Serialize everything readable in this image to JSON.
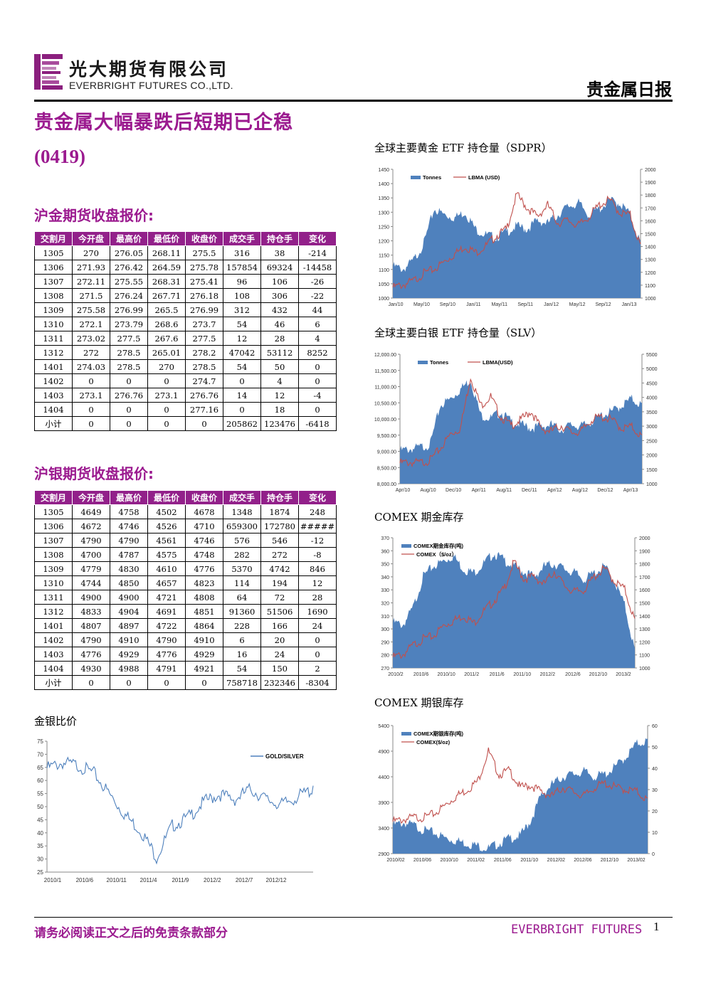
{
  "header": {
    "company_cn": "光大期货有限公司",
    "company_en": "EVERBRIGHT FUTURES CO.,LTD.",
    "report_type": "贵金属日报"
  },
  "headline": "贵金属大幅暴跌后短期已企稳",
  "date_code": "(0419)",
  "colors": {
    "brand": "#9b1a8f",
    "table_header": "#92208a",
    "bar_fill": "#4f81bd",
    "line_red": "#c0504d"
  },
  "gold_futures": {
    "title": "沪金期货收盘报价:",
    "columns": [
      "交割月",
      "今开盘",
      "最高价",
      "最低价",
      "收盘价",
      "成交手",
      "持仓手",
      "变化"
    ],
    "rows": [
      [
        "1305",
        "270",
        "276.05",
        "268.11",
        "275.5",
        "316",
        "38",
        "-214"
      ],
      [
        "1306",
        "271.93",
        "276.42",
        "264.59",
        "275.78",
        "157854",
        "69324",
        "-14458"
      ],
      [
        "1307",
        "272.11",
        "275.55",
        "268.31",
        "275.41",
        "96",
        "106",
        "-26"
      ],
      [
        "1308",
        "271.5",
        "276.24",
        "267.71",
        "276.18",
        "108",
        "306",
        "-22"
      ],
      [
        "1309",
        "275.58",
        "276.99",
        "265.5",
        "276.99",
        "312",
        "432",
        "44"
      ],
      [
        "1310",
        "272.1",
        "273.79",
        "268.6",
        "273.7",
        "54",
        "46",
        "6"
      ],
      [
        "1311",
        "273.02",
        "277.5",
        "267.6",
        "277.5",
        "12",
        "28",
        "4"
      ],
      [
        "1312",
        "272",
        "278.5",
        "265.01",
        "278.2",
        "47042",
        "53112",
        "8252"
      ],
      [
        "1401",
        "274.03",
        "278.5",
        "270",
        "278.5",
        "54",
        "50",
        "0"
      ],
      [
        "1402",
        "0",
        "0",
        "0",
        "274.7",
        "0",
        "4",
        "0"
      ],
      [
        "1403",
        "273.1",
        "276.76",
        "273.1",
        "276.76",
        "14",
        "12",
        "-4"
      ],
      [
        "1404",
        "0",
        "0",
        "0",
        "277.16",
        "0",
        "18",
        "0"
      ],
      [
        "小计",
        "0",
        "0",
        "0",
        "0",
        "205862",
        "123476",
        "-6418"
      ]
    ]
  },
  "silver_futures": {
    "title": "沪银期货收盘报价:",
    "columns": [
      "交割月",
      "今开盘",
      "最高价",
      "最低价",
      "收盘价",
      "成交手",
      "持仓手",
      "变化"
    ],
    "rows": [
      [
        "1305",
        "4649",
        "4758",
        "4502",
        "4678",
        "1348",
        "1874",
        "248"
      ],
      [
        "1306",
        "4672",
        "4746",
        "4526",
        "4710",
        "659300",
        "172780",
        "#####"
      ],
      [
        "1307",
        "4790",
        "4790",
        "4561",
        "4746",
        "576",
        "546",
        "-12"
      ],
      [
        "1308",
        "4700",
        "4787",
        "4575",
        "4748",
        "282",
        "272",
        "-8"
      ],
      [
        "1309",
        "4779",
        "4830",
        "4610",
        "4776",
        "5370",
        "4742",
        "846"
      ],
      [
        "1310",
        "4744",
        "4850",
        "4657",
        "4823",
        "114",
        "194",
        "12"
      ],
      [
        "1311",
        "4900",
        "4900",
        "4721",
        "4808",
        "64",
        "72",
        "28"
      ],
      [
        "1312",
        "4833",
        "4904",
        "4691",
        "4851",
        "91360",
        "51506",
        "1690"
      ],
      [
        "1401",
        "4807",
        "4897",
        "4722",
        "4864",
        "228",
        "166",
        "24"
      ],
      [
        "1402",
        "4790",
        "4910",
        "4790",
        "4910",
        "6",
        "20",
        "0"
      ],
      [
        "1403",
        "4776",
        "4929",
        "4776",
        "4929",
        "16",
        "24",
        "0"
      ],
      [
        "1404",
        "4930",
        "4988",
        "4791",
        "4921",
        "54",
        "150",
        "2"
      ],
      [
        "小计",
        "0",
        "0",
        "0",
        "0",
        "758718",
        "232346",
        "-8304"
      ]
    ]
  },
  "chart_data": [
    {
      "id": "gold_silver_ratio",
      "type": "line",
      "title": "金银比价",
      "series": [
        {
          "name": "GOLD/SILVER",
          "x": [
            "2010/1",
            "2010/3",
            "2010/6",
            "2010/8",
            "2010/11",
            "2011/1",
            "2011/3",
            "2011/4",
            "2011/6",
            "2011/9",
            "2011/11",
            "2012/2",
            "2012/4",
            "2012/7",
            "2012/9",
            "2012/12",
            "2013/2",
            "2013/4"
          ],
          "values": [
            66,
            68,
            67,
            64,
            56,
            48,
            42,
            32,
            44,
            47,
            53,
            56,
            54,
            58,
            54,
            52,
            55,
            58
          ]
        }
      ],
      "x_ticks": [
        "2010/1",
        "2010/6",
        "2010/11",
        "2011/4",
        "2011/9",
        "2012/2",
        "2012/7",
        "2012/12"
      ],
      "ylim": [
        25,
        75
      ],
      "y_ticks": [
        25,
        30,
        35,
        40,
        45,
        50,
        55,
        60,
        65,
        70,
        75
      ],
      "legend": "top-right"
    },
    {
      "id": "gold_etf",
      "type": "area",
      "title": "全球主要黄金 ETF 持仓量（SDPR）",
      "x_ticks": [
        "Jan/10",
        "May/10",
        "Sep/10",
        "Jan/11",
        "May/11",
        "Sep/11",
        "Jan/12",
        "May/12",
        "Sep/12",
        "Jan/13"
      ],
      "series": [
        {
          "name": "Tonnes",
          "axis": "left",
          "kind": "area",
          "values": [
            1120,
            1110,
            1140,
            1200,
            1320,
            1300,
            1290,
            1310,
            1250,
            1230,
            1220,
            1240,
            1260,
            1250,
            1280,
            1270,
            1300,
            1330,
            1340,
            1300,
            1320,
            1350,
            1340,
            1300,
            1200
          ]
        },
        {
          "name": "LBMA (USD)",
          "axis": "right",
          "kind": "line",
          "values": [
            1100,
            1120,
            1150,
            1210,
            1240,
            1300,
            1360,
            1420,
            1370,
            1420,
            1500,
            1550,
            1820,
            1720,
            1650,
            1740,
            1600,
            1620,
            1580,
            1650,
            1740,
            1780,
            1680,
            1660,
            1420
          ]
        }
      ],
      "ylim_left": [
        1000,
        1450
      ],
      "y_ticks_left": [
        1000,
        1050,
        1100,
        1150,
        1200,
        1250,
        1300,
        1350,
        1400,
        1450
      ],
      "ylim_right": [
        1000,
        2000
      ],
      "y_ticks_right": [
        1000,
        1100,
        1200,
        1300,
        1400,
        1500,
        1600,
        1700,
        1800,
        1900,
        2000
      ],
      "legend": "top-left"
    },
    {
      "id": "silver_etf",
      "type": "area",
      "title": "全球主要白银 ETF 持仓量（SLV）",
      "x_ticks": [
        "Apr/10",
        "Aug/10",
        "Dec/10",
        "Apr/11",
        "Aug/11",
        "Dec/11",
        "Apr/12",
        "Aug/12",
        "Dec/12",
        "Apr/13"
      ],
      "series": [
        {
          "name": "Tonnes",
          "axis": "left",
          "kind": "area",
          "values": [
            9100,
            9150,
            9200,
            9300,
            10500,
            10700,
            11000,
            11300,
            10200,
            10100,
            10300,
            10000,
            9900,
            9800,
            9850,
            9900,
            9750,
            9900,
            9850,
            10000,
            10200,
            10300,
            10500,
            10700,
            10500
          ]
        },
        {
          "name": "LBMA(USD)",
          "axis": "right",
          "kind": "line",
          "values": [
            1800,
            1820,
            1800,
            1900,
            2300,
            2800,
            3000,
            4800,
            3800,
            4100,
            3400,
            3100,
            3300,
            3600,
            3000,
            2900,
            3100,
            2850,
            2900,
            3300,
            3400,
            3300,
            3000,
            3050,
            2700
          ]
        }
      ],
      "ylim_left": [
        8000,
        12000
      ],
      "y_ticks_left": [
        "8,000.00",
        "8,500.00",
        "9,000.00",
        "9,500.00",
        "10,000.00",
        "10,500.00",
        "11,000.00",
        "11,500.00",
        "12,000.00"
      ],
      "ylim_right": [
        1000,
        5500
      ],
      "y_ticks_right": [
        1000,
        1500,
        2000,
        2500,
        3000,
        3500,
        4000,
        4500,
        5000,
        5500
      ],
      "legend": "top-left"
    },
    {
      "id": "comex_gold",
      "type": "area",
      "title": "COMEX 期金库存",
      "x_ticks": [
        "2010/2",
        "2010/6",
        "2010/10",
        "2011/2",
        "2011/6",
        "2011/10",
        "2012/2",
        "2012/6",
        "2012/10",
        "2013/2"
      ],
      "series": [
        {
          "name": "COMEX期金库存(吨)",
          "axis": "left",
          "kind": "area",
          "values": [
            307,
            305,
            318,
            342,
            350,
            354,
            358,
            348,
            345,
            352,
            360,
            355,
            350,
            346,
            342,
            350,
            352,
            348,
            345,
            340,
            345,
            350,
            338,
            320,
            285
          ]
        },
        {
          "name": "COMEX（$/oz）",
          "axis": "right",
          "kind": "line",
          "values": [
            1100,
            1120,
            1190,
            1240,
            1260,
            1340,
            1380,
            1420,
            1360,
            1450,
            1530,
            1620,
            1830,
            1700,
            1720,
            1660,
            1760,
            1650,
            1600,
            1620,
            1720,
            1780,
            1680,
            1620,
            1380
          ]
        }
      ],
      "ylim_left": [
        270,
        370
      ],
      "y_ticks_left": [
        270,
        280,
        290,
        300,
        310,
        320,
        330,
        340,
        350,
        360,
        370
      ],
      "ylim_right": [
        1000,
        2000
      ],
      "y_ticks_right": [
        1000,
        1100,
        1200,
        1300,
        1400,
        1500,
        1600,
        1700,
        1800,
        1900,
        2000
      ],
      "legend": "top-left"
    },
    {
      "id": "comex_silver",
      "type": "area",
      "title": "COMEX 期银库存",
      "x_ticks": [
        "2010/02",
        "2010/06",
        "2010/10",
        "2011/02",
        "2011/06",
        "2011/10",
        "2012/02",
        "2012/06",
        "2012/10",
        "2013/02"
      ],
      "series": [
        {
          "name": "COMEX期银库存(吨)",
          "axis": "left",
          "kind": "area",
          "values": [
            3500,
            3550,
            3500,
            3400,
            3350,
            3250,
            3200,
            3150,
            3100,
            3050,
            3150,
            3250,
            3300,
            3600,
            4100,
            4300,
            4450,
            4500,
            4550,
            4450,
            4500,
            4650,
            4850,
            5100,
            5150
          ]
        },
        {
          "name": "COMEX($/oz)",
          "axis": "right",
          "kind": "line",
          "values": [
            16,
            17,
            18,
            18,
            20,
            24,
            28,
            31,
            35,
            49,
            38,
            40,
            32,
            33,
            30,
            28,
            32,
            30,
            28,
            32,
            34,
            32,
            31,
            30,
            26
          ]
        }
      ],
      "ylim_left": [
        2900,
        5400
      ],
      "y_ticks_left": [
        2900,
        3400,
        3900,
        4400,
        4900,
        5400
      ],
      "ylim_right": [
        0,
        60
      ],
      "y_ticks_right": [
        0,
        10,
        20,
        30,
        40,
        50,
        60
      ],
      "legend": "top-left"
    }
  ],
  "footer": {
    "disclaimer": "请务必阅读正文之后的免责条款部分",
    "brand": "EVERBRIGHT FUTURES",
    "page": "1"
  }
}
